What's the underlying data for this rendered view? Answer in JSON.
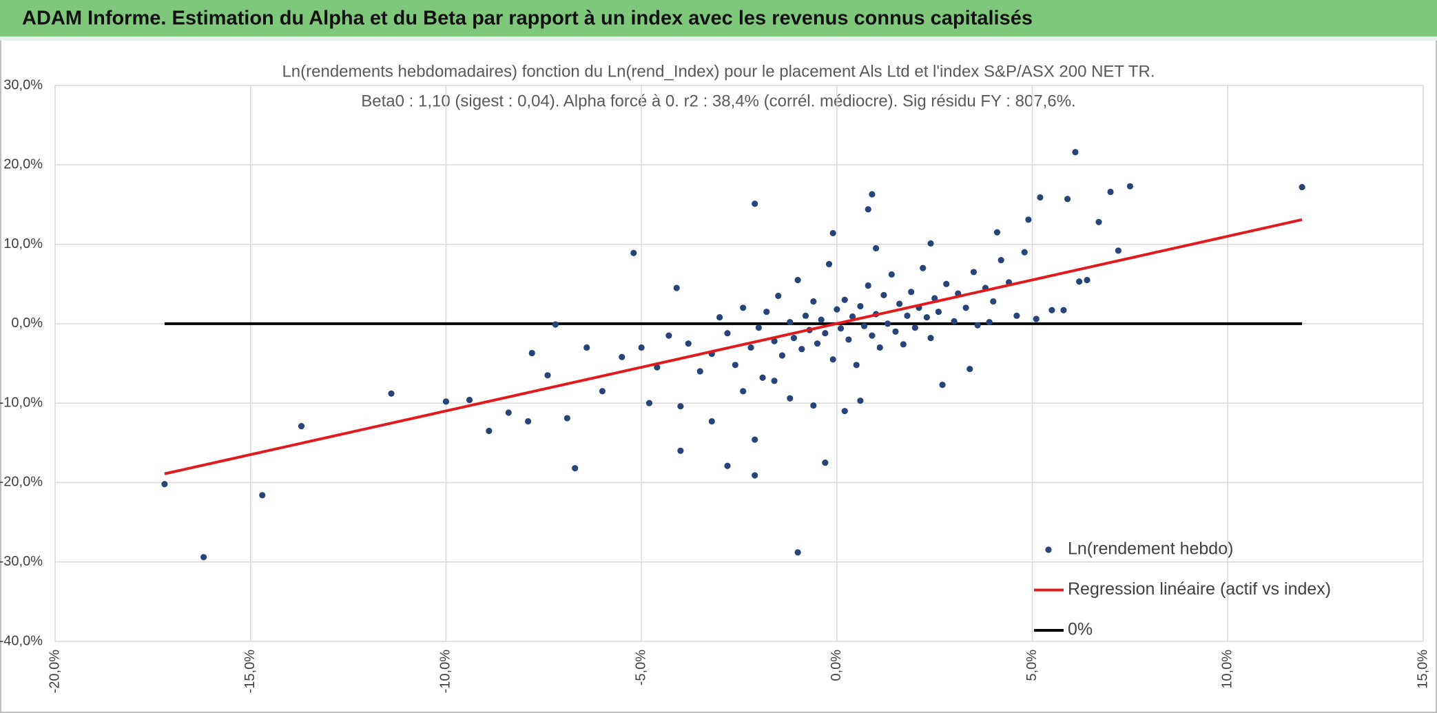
{
  "header": {
    "title": "ADAM Informe. Estimation du Alpha et du Beta par rapport à un index avec les revenus connus capitalisés"
  },
  "chart_data": {
    "type": "scatter",
    "title": "Ln(rendements hebdomadaires) fonction du Ln(rend_Index) pour le placement Als Ltd et l'index S&P/ASX 200 NET TR.",
    "subtitle": "Beta0 : 1,10 (sigest : 0,04). Alpha forcé à 0. r2 : 38,4% (corrél. médiocre). Sig résidu FY : 807,6%.",
    "xlim": [
      -20,
      15
    ],
    "xticks": [
      {
        "value": -20,
        "label": "-20,0%"
      },
      {
        "value": -15,
        "label": "-15,0%"
      },
      {
        "value": -10,
        "label": "-10,0%"
      },
      {
        "value": -5,
        "label": "-5,0%"
      },
      {
        "value": 0,
        "label": "0,0%"
      },
      {
        "value": 5,
        "label": "5,0%"
      },
      {
        "value": 10,
        "label": "10,0%"
      },
      {
        "value": 15,
        "label": "15,0%"
      }
    ],
    "ylim": [
      -40,
      30
    ],
    "yticks": [
      {
        "value": -40,
        "label": "-40,0%"
      },
      {
        "value": -30,
        "label": "-30,0%"
      },
      {
        "value": -20,
        "label": "-20,0%"
      },
      {
        "value": -10,
        "label": "-10,0%"
      },
      {
        "value": 0,
        "label": "0,0%"
      },
      {
        "value": 10,
        "label": "10,0%"
      },
      {
        "value": 20,
        "label": "20,0%"
      },
      {
        "value": 30,
        "label": "30,0%"
      }
    ],
    "grid": true,
    "legend": "lower right",
    "series": [
      {
        "name": "Ln(rendement hebdo)",
        "type": "scatter",
        "color": "#264478",
        "x": [
          -17.2,
          -16.2,
          -14.7,
          -13.7,
          -11.4,
          -10.0,
          -9.4,
          -8.9,
          -8.4,
          -7.9,
          -7.8,
          -7.4,
          -7.2,
          -6.9,
          -6.7,
          -5.2,
          -4.1,
          -4.0,
          -4.0,
          -3.2,
          -2.8,
          -2.1,
          -2.1,
          -2.1,
          -1.0,
          -0.3,
          -0.1,
          0.9,
          0.8,
          2.7,
          3.4,
          4.1,
          4.9,
          5.2,
          5.9,
          6.1,
          6.7,
          7.0,
          7.5,
          7.2,
          11.9,
          5.5,
          5.8,
          5.1,
          6.2,
          6.4,
          -5.5,
          -5.0,
          -4.6,
          -4.3,
          -3.8,
          -3.5,
          -3.2,
          -3.0,
          -2.8,
          -2.6,
          -2.4,
          -2.2,
          -2.0,
          -1.9,
          -1.8,
          -1.6,
          -1.5,
          -1.4,
          -1.2,
          -1.1,
          -1.0,
          -0.9,
          -0.8,
          -0.7,
          -0.6,
          -0.5,
          -0.4,
          -0.3,
          -0.2,
          -0.1,
          0.0,
          0.1,
          0.2,
          0.3,
          0.4,
          0.5,
          0.6,
          0.7,
          0.8,
          0.9,
          1.0,
          1.1,
          1.2,
          1.3,
          1.4,
          1.5,
          1.6,
          1.7,
          1.8,
          1.9,
          2.0,
          2.1,
          2.2,
          2.3,
          2.4,
          2.5,
          2.6,
          2.8,
          3.0,
          3.1,
          3.3,
          3.5,
          3.6,
          3.8,
          4.0,
          4.2,
          4.4,
          4.6,
          -6.0,
          -6.4,
          -4.8,
          -2.4,
          -1.2,
          -0.6,
          0.6,
          0.2,
          3.9,
          4.8,
          1.0,
          2.4,
          -1.6
        ],
        "values": [
          -20.2,
          -29.4,
          -21.6,
          -12.9,
          -8.8,
          -9.8,
          -9.6,
          -13.5,
          -11.2,
          -12.3,
          -3.7,
          -6.5,
          -0.1,
          -11.9,
          -18.2,
          8.9,
          4.5,
          -16.0,
          -10.4,
          -12.3,
          -17.9,
          15.1,
          -14.6,
          -19.1,
          -28.8,
          -17.5,
          11.4,
          16.3,
          14.4,
          -7.7,
          -5.7,
          11.5,
          13.1,
          15.9,
          15.7,
          21.6,
          12.8,
          16.6,
          17.3,
          9.2,
          17.2,
          1.7,
          1.7,
          0.6,
          5.3,
          5.5,
          -4.2,
          -3.0,
          -5.5,
          -1.5,
          -2.5,
          -6.0,
          -3.8,
          0.8,
          -1.2,
          -5.2,
          2.0,
          -3.0,
          -0.5,
          -6.8,
          1.5,
          -2.2,
          3.5,
          -4.0,
          0.2,
          -1.8,
          5.5,
          -3.2,
          1.0,
          -0.8,
          2.8,
          -2.5,
          0.5,
          -1.2,
          7.5,
          -4.5,
          1.8,
          -0.6,
          3.0,
          -2.0,
          0.9,
          -5.2,
          2.2,
          -0.3,
          4.8,
          -1.5,
          1.2,
          -3.0,
          3.6,
          0.0,
          6.2,
          -1.0,
          2.5,
          -2.6,
          1.0,
          4.0,
          -0.5,
          2.0,
          7.0,
          0.8,
          -1.8,
          3.2,
          1.5,
          5.0,
          0.3,
          3.8,
          2.0,
          6.5,
          -0.2,
          4.5,
          2.8,
          8.0,
          5.2,
          1.0,
          -8.5,
          -3.0,
          -10,
          -8.5,
          -9.4,
          -10.3,
          -9.7,
          -11,
          0.2,
          9.0,
          9.5,
          10.1,
          -7.2
        ]
      },
      {
        "name": "Regression linéaire (actif vs index)",
        "type": "line",
        "color": "#e31a1c",
        "x": [
          -17.2,
          11.9
        ],
        "values": [
          -18.9,
          13.1
        ]
      },
      {
        "name": "0%",
        "type": "line",
        "color": "#000000",
        "x": [
          -17.2,
          11.9
        ],
        "values": [
          0,
          0
        ]
      }
    ]
  }
}
